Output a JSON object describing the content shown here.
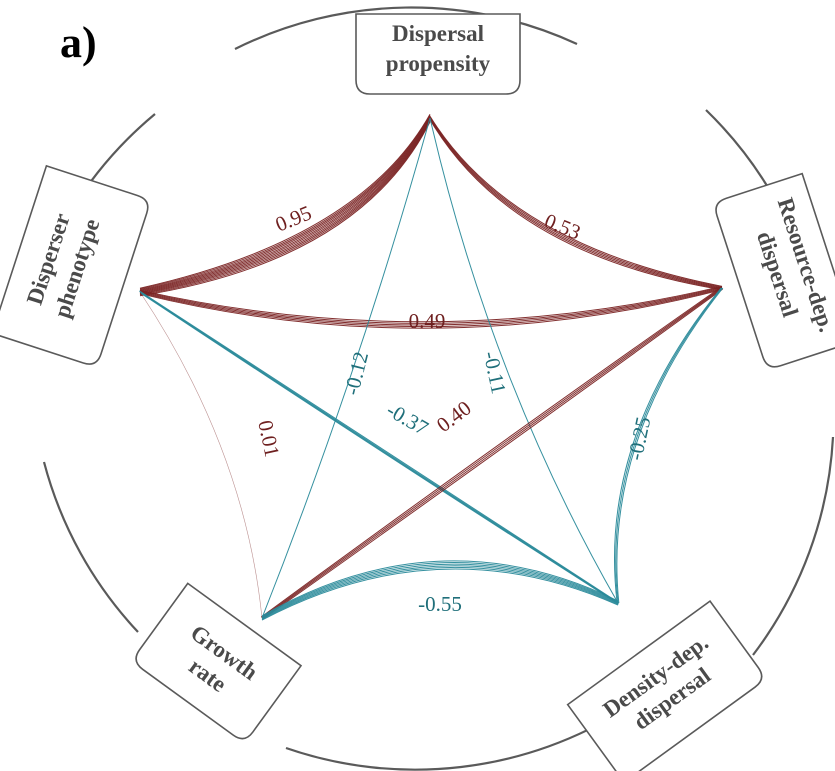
{
  "panel_label": "a)",
  "colors": {
    "positive": "#7a2323",
    "negative": "#2a8a9a",
    "positive_label": "#6e1f1f",
    "negative_label": "#1f6f7a",
    "rim": "#5a5a5a",
    "node_text": "#4a4a4a"
  },
  "nodes": {
    "dispersal_propensity": {
      "line1": "Dispersal",
      "line2": "propensity"
    },
    "resource_dep": {
      "line1": "Resource-dep.",
      "line2": "dispersal"
    },
    "density_dep": {
      "line1": "Density-dep.",
      "line2": "dispersal"
    },
    "growth_rate": {
      "line1": "Growth",
      "line2": "rate"
    },
    "disperser_phenotype": {
      "line1": "Disperser",
      "line2": "phenotype"
    }
  },
  "edges": [
    {
      "id": "dp-ph",
      "from": "Dispersal propensity",
      "to": "Disperser phenotype",
      "value": 0.95,
      "label": "0.95"
    },
    {
      "id": "dp-rd",
      "from": "Dispersal propensity",
      "to": "Resource-dep. dispersal",
      "value": 0.53,
      "label": "0.53"
    },
    {
      "id": "ph-rd",
      "from": "Disperser phenotype",
      "to": "Resource-dep. dispersal",
      "value": 0.49,
      "label": "0.49"
    },
    {
      "id": "dp-gr",
      "from": "Dispersal propensity",
      "to": "Growth rate",
      "value": -0.12,
      "label": "-0.12"
    },
    {
      "id": "dp-dd",
      "from": "Dispersal propensity",
      "to": "Density-dep. dispersal",
      "value": -0.11,
      "label": "-0.11"
    },
    {
      "id": "ph-dd",
      "from": "Disperser phenotype",
      "to": "Density-dep. dispersal",
      "value": -0.37,
      "label": "-0.37"
    },
    {
      "id": "rd-gr",
      "from": "Resource-dep. dispersal",
      "to": "Growth rate",
      "value": 0.4,
      "label": "0.40"
    },
    {
      "id": "ph-gr",
      "from": "Disperser phenotype",
      "to": "Growth rate",
      "value": 0.01,
      "label": "0.01"
    },
    {
      "id": "rd-dd",
      "from": "Resource-dep. dispersal",
      "to": "Density-dep. dispersal",
      "value": -0.25,
      "label": "-0.25"
    },
    {
      "id": "gr-dd",
      "from": "Growth rate",
      "to": "Density-dep. dispersal",
      "value": -0.55,
      "label": "-0.55"
    }
  ]
}
